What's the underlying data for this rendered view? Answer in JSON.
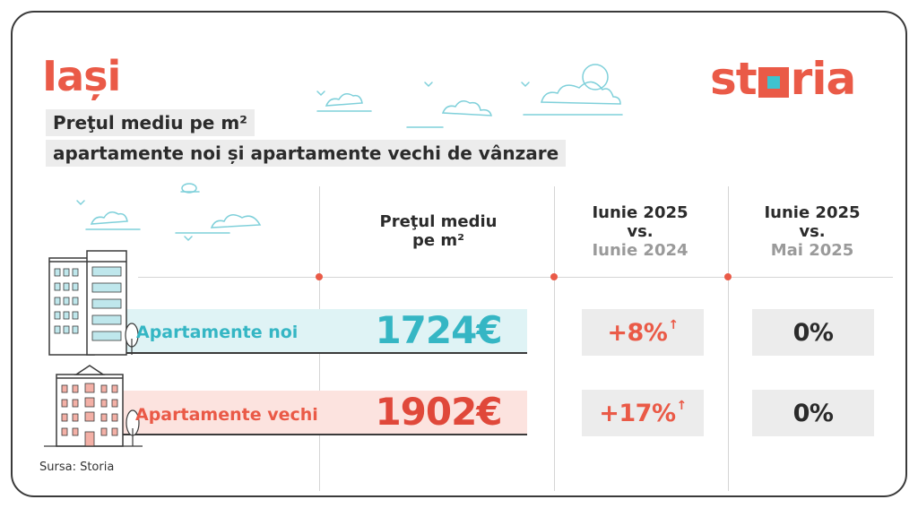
{
  "header": {
    "city": "Iași",
    "brand_left": "st",
    "brand_right": "ria"
  },
  "title": {
    "line1": "Preţul mediu pe m²",
    "line2": "apartamente noi și apartamente vechi de vânzare"
  },
  "columns": {
    "price": {
      "line1": "Preţul mediu",
      "line2": "pe m²"
    },
    "yoy": {
      "line1": "Iunie 2025",
      "line2": "vs.",
      "line3": "Iunie 2024"
    },
    "mom": {
      "line1": "Iunie 2025",
      "line2": "vs.",
      "line3": "Mai 2025"
    }
  },
  "rows": [
    {
      "label": "Apartamente noi",
      "price": "1724€",
      "yoy": "+8%",
      "yoy_arrow": "↑",
      "mom": "0%"
    },
    {
      "label": "Apartamente vechi",
      "price": "1902€",
      "yoy": "+17%",
      "yoy_arrow": "↑",
      "mom": "0%"
    }
  ],
  "footer": {
    "source": "Sursa: Storia"
  },
  "colors": {
    "accent": "#ea5a47",
    "teal": "#35b6c4",
    "chip_bg": "#ececec",
    "teal_band": "#dff3f5",
    "red_band": "#fce3df"
  },
  "icons": {
    "modern_building": "modern-apartment-building-icon",
    "old_building": "old-apartment-building-icon",
    "clouds": "cloud-icon",
    "birds": "bird-icon",
    "tree": "tree-icon"
  }
}
